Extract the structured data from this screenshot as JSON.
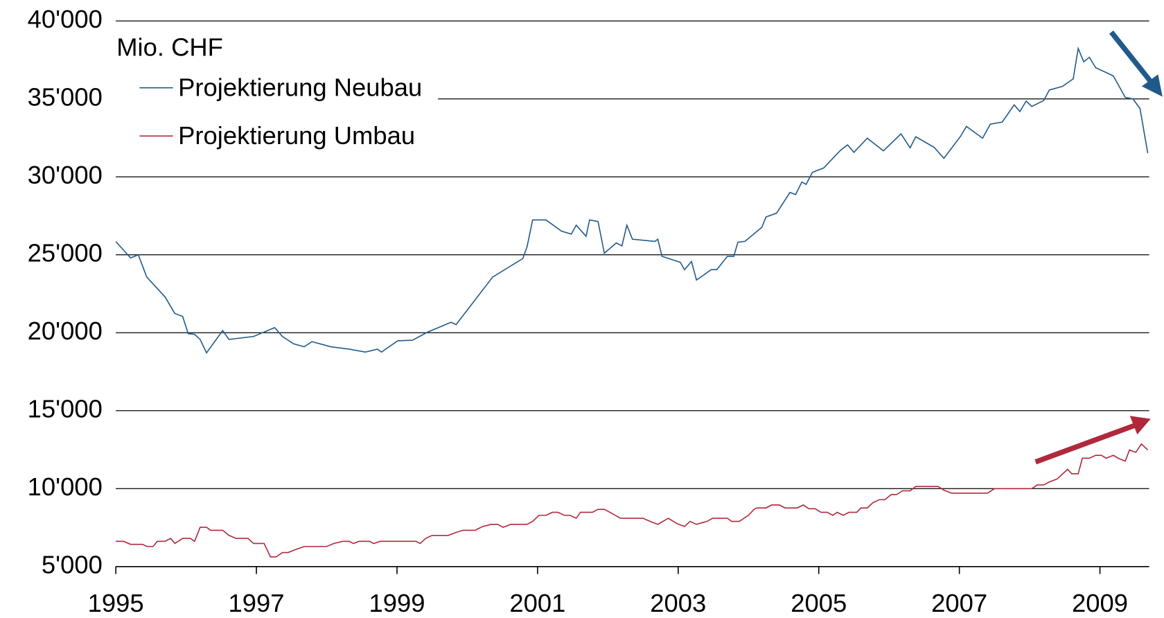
{
  "chart_data": {
    "type": "line",
    "y_label": "Mio. CHF",
    "xlim": [
      1995,
      2009.7
    ],
    "xticks": [
      1995,
      1997,
      1999,
      2001,
      2003,
      2005,
      2007,
      2009
    ],
    "ylim": [
      5000,
      40000
    ],
    "yticks": [
      {
        "value": 5000,
        "label": "5'000"
      },
      {
        "value": 10000,
        "label": "10'000"
      },
      {
        "value": 15000,
        "label": "15'000"
      },
      {
        "value": 20000,
        "label": "20'000"
      },
      {
        "value": 25000,
        "label": "25'000"
      },
      {
        "value": 30000,
        "label": "30'000"
      },
      {
        "value": 35000,
        "label": "35'000"
      },
      {
        "value": 40000,
        "label": "40'000"
      }
    ],
    "grid": true,
    "legend": "top-left",
    "series": [
      {
        "name": "Projektierung Neubau",
        "color": "#1f5a8a",
        "x": [
          1995.0,
          1995.21,
          1995.32,
          1995.44,
          1995.7,
          1995.84,
          1995.95,
          1996.03,
          1996.12,
          1996.2,
          1996.29,
          1996.52,
          1996.61,
          1996.96,
          1997.26,
          1997.37,
          1997.53,
          1997.68,
          1997.79,
          1998.06,
          1998.32,
          1998.55,
          1998.72,
          1998.78,
          1999.01,
          1999.22,
          1999.44,
          1999.77,
          1999.84,
          2000.11,
          2000.36,
          2000.62,
          2000.79,
          2000.85,
          2000.93,
          2001.12,
          2001.34,
          2001.48,
          2001.55,
          2001.69,
          2001.74,
          2001.86,
          2001.95,
          2002.12,
          2002.2,
          2002.27,
          2002.35,
          2002.67,
          2002.71,
          2002.77,
          2003.03,
          2003.09,
          2003.19,
          2003.26,
          2003.47,
          2003.55,
          2003.7,
          2003.79,
          2003.85,
          2003.95,
          2004.19,
          2004.25,
          2004.4,
          2004.59,
          2004.67,
          2004.76,
          2004.82,
          2004.91,
          2005.07,
          2005.31,
          2005.41,
          2005.5,
          2005.69,
          2005.92,
          2006.17,
          2006.3,
          2006.38,
          2006.64,
          2006.78,
          2007.02,
          2007.1,
          2007.33,
          2007.44,
          2007.61,
          2007.78,
          2007.86,
          2007.95,
          2008.03,
          2008.2,
          2008.28,
          2008.47,
          2008.62,
          2008.69,
          2008.77,
          2008.85,
          2008.94,
          2009.19,
          2009.36,
          2009.47,
          2009.57,
          2009.68
        ],
        "values": [
          25850,
          24800,
          25000,
          23570,
          22300,
          21240,
          21050,
          19950,
          19900,
          19570,
          18710,
          20140,
          19570,
          19760,
          20330,
          19760,
          19290,
          19100,
          19430,
          19100,
          18950,
          18760,
          18950,
          18760,
          19480,
          19520,
          20050,
          20670,
          20520,
          22100,
          23570,
          24290,
          24760,
          25520,
          27240,
          27240,
          26520,
          26330,
          26900,
          26190,
          27240,
          27140,
          25100,
          25760,
          25570,
          26900,
          26000,
          25860,
          26000,
          24900,
          24520,
          24050,
          24570,
          23380,
          24050,
          24050,
          24900,
          24900,
          25810,
          25860,
          26760,
          27430,
          27670,
          29000,
          28860,
          29670,
          29520,
          30290,
          30570,
          31710,
          32050,
          31570,
          32480,
          31670,
          32760,
          31860,
          32570,
          31900,
          31190,
          32620,
          33240,
          32480,
          33380,
          33520,
          34620,
          34190,
          34860,
          34520,
          34900,
          35570,
          35810,
          36290,
          38240,
          37380,
          37670,
          37000,
          36480,
          35100,
          35000,
          34380,
          31520
        ]
      },
      {
        "name": "Projektierung Umbau",
        "color": "#b0283c",
        "x": [
          1995.0,
          1995.11,
          1995.21,
          1995.38,
          1995.44,
          1995.53,
          1995.59,
          1995.7,
          1995.78,
          1995.84,
          1995.95,
          1996.06,
          1996.12,
          1996.2,
          1996.29,
          1996.35,
          1996.52,
          1996.61,
          1996.71,
          1996.88,
          1996.96,
          1997.11,
          1997.2,
          1997.28,
          1997.37,
          1997.45,
          1997.53,
          1997.68,
          1998.0,
          1998.1,
          1998.23,
          1998.32,
          1998.38,
          1998.46,
          1998.61,
          1998.67,
          1998.76,
          1999.27,
          1999.33,
          1999.41,
          1999.5,
          1999.73,
          1999.84,
          1999.94,
          2000.11,
          2000.22,
          2000.34,
          2000.43,
          2000.51,
          2000.62,
          2000.85,
          2000.93,
          2001.02,
          2001.12,
          2001.21,
          2001.29,
          2001.38,
          2001.46,
          2001.55,
          2001.61,
          2001.78,
          2001.86,
          2001.95,
          2002.03,
          2002.18,
          2002.5,
          2002.6,
          2002.71,
          2002.86,
          2002.98,
          2003.09,
          2003.17,
          2003.26,
          2003.41,
          2003.49,
          2003.7,
          2003.76,
          2003.87,
          2004.0,
          2004.08,
          2004.12,
          2004.25,
          2004.33,
          2004.44,
          2004.52,
          2004.69,
          2004.78,
          2004.86,
          2004.95,
          2005.03,
          2005.12,
          2005.2,
          2005.26,
          2005.35,
          2005.43,
          2005.54,
          2005.6,
          2005.69,
          2005.77,
          2005.86,
          2005.94,
          2006.03,
          2006.11,
          2006.19,
          2006.3,
          2006.38,
          2006.7,
          2006.78,
          2006.89,
          2007.4,
          2007.5,
          2008.03,
          2008.11,
          2008.2,
          2008.28,
          2008.39,
          2008.45,
          2008.54,
          2008.6,
          2008.69,
          2008.75,
          2008.85,
          2008.94,
          2009.02,
          2009.09,
          2009.19,
          2009.26,
          2009.36,
          2009.42,
          2009.51,
          2009.59,
          2009.68
        ],
        "values": [
          6620,
          6620,
          6430,
          6430,
          6290,
          6290,
          6620,
          6620,
          6810,
          6480,
          6810,
          6810,
          6620,
          7520,
          7520,
          7330,
          7330,
          7000,
          6810,
          6810,
          6480,
          6480,
          5620,
          5620,
          5900,
          5900,
          6050,
          6290,
          6290,
          6480,
          6620,
          6620,
          6480,
          6620,
          6620,
          6480,
          6620,
          6620,
          6480,
          6810,
          7000,
          7000,
          7190,
          7330,
          7330,
          7570,
          7710,
          7710,
          7520,
          7710,
          7710,
          7900,
          8290,
          8290,
          8480,
          8480,
          8290,
          8290,
          8100,
          8480,
          8480,
          8670,
          8670,
          8480,
          8100,
          8100,
          7900,
          7710,
          8100,
          7760,
          7570,
          7900,
          7710,
          7900,
          8100,
          8100,
          7900,
          7900,
          8290,
          8670,
          8760,
          8760,
          8950,
          8950,
          8760,
          8760,
          8950,
          8710,
          8710,
          8480,
          8480,
          8290,
          8480,
          8290,
          8480,
          8480,
          8760,
          8760,
          9100,
          9290,
          9290,
          9620,
          9620,
          9860,
          9860,
          10140,
          10140,
          9900,
          9710,
          9710,
          10000,
          10000,
          10240,
          10240,
          10430,
          10620,
          10860,
          11240,
          10950,
          10950,
          11950,
          11950,
          12140,
          12140,
          11950,
          12140,
          11950,
          11760,
          12480,
          12330,
          12860,
          12480
        ]
      }
    ]
  }
}
